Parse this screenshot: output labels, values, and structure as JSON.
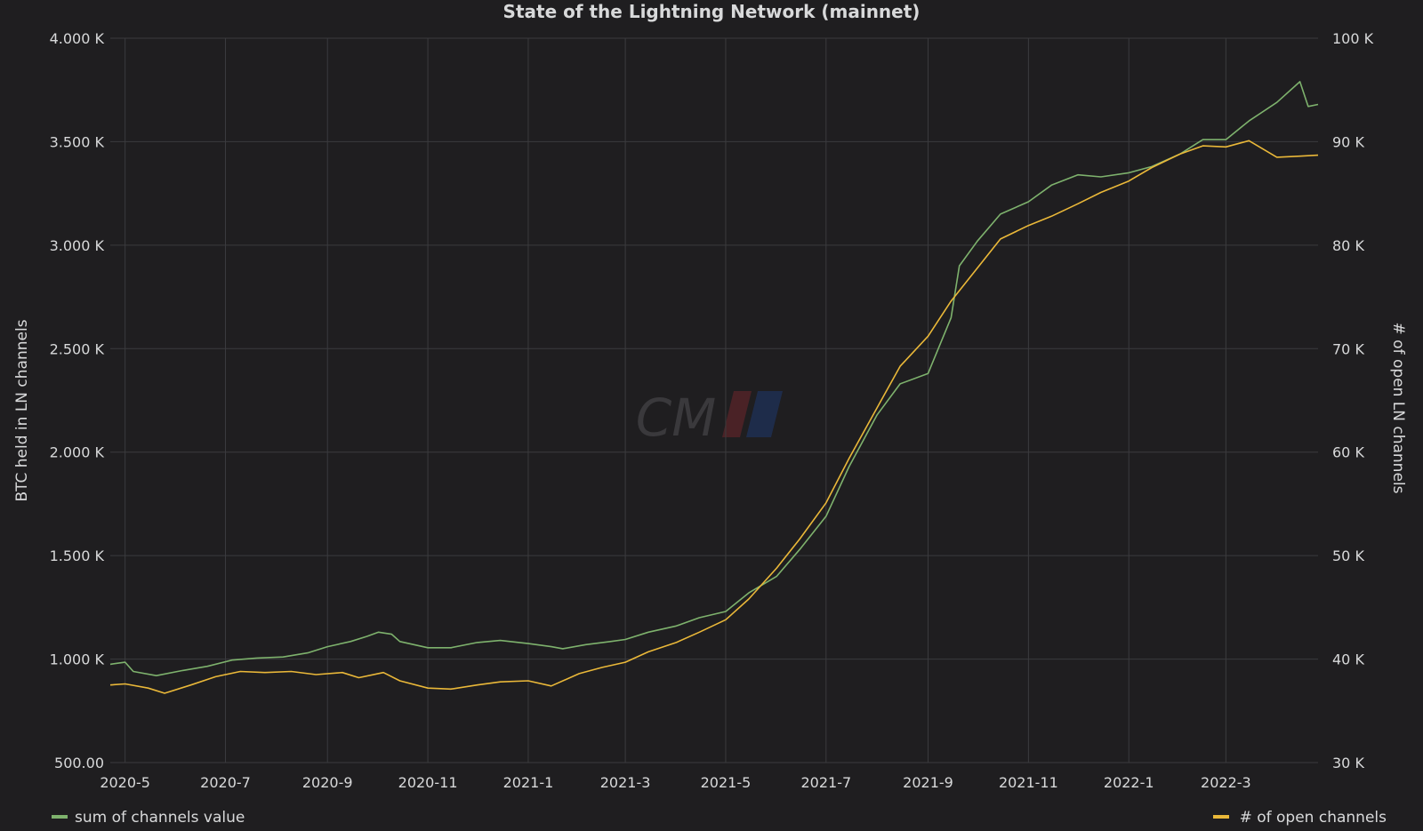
{
  "chart_data": {
    "type": "line",
    "title": "State of the Lightning Network (mainnet)",
    "watermark": "CM",
    "x_domain": [
      "2020-04-22",
      "2022-04-26"
    ],
    "x_ticks": [
      {
        "date": "2020-05-01",
        "label": "2020-5"
      },
      {
        "date": "2020-07-01",
        "label": "2020-7"
      },
      {
        "date": "2020-09-01",
        "label": "2020-9"
      },
      {
        "date": "2020-11-01",
        "label": "2020-11"
      },
      {
        "date": "2021-01-01",
        "label": "2021-1"
      },
      {
        "date": "2021-03-01",
        "label": "2021-3"
      },
      {
        "date": "2021-05-01",
        "label": "2021-5"
      },
      {
        "date": "2021-07-01",
        "label": "2021-7"
      },
      {
        "date": "2021-09-01",
        "label": "2021-9"
      },
      {
        "date": "2021-11-01",
        "label": "2021-11"
      },
      {
        "date": "2022-01-01",
        "label": "2022-1"
      },
      {
        "date": "2022-03-01",
        "label": "2022-3"
      }
    ],
    "y_left": {
      "label": "BTC held in LN channels",
      "range": [
        500,
        4000
      ],
      "ticks": [
        500,
        1000,
        1500,
        2000,
        2500,
        3000,
        3500,
        4000
      ],
      "tick_labels": [
        "500.00",
        "1.000 K",
        "1.500 K",
        "2.000 K",
        "2.500 K",
        "3.000 K",
        "3.500 K",
        "4.000 K"
      ]
    },
    "y_right": {
      "label": "# of open LN channels",
      "range": [
        30000,
        100000
      ],
      "ticks": [
        30000,
        40000,
        50000,
        60000,
        70000,
        80000,
        90000,
        100000
      ],
      "tick_labels": [
        "30 K",
        "40 K",
        "50 K",
        "60 K",
        "70 K",
        "80 K",
        "90 K",
        "100 K"
      ]
    },
    "grid": true,
    "legend_placement": "bottom",
    "series": [
      {
        "name": "sum of channels value",
        "axis": "left",
        "color": "#7eb26d",
        "points": [
          [
            "2020-04-22",
            975
          ],
          [
            "2020-05-01",
            985
          ],
          [
            "2020-05-06",
            940
          ],
          [
            "2020-05-20",
            920
          ],
          [
            "2020-06-05",
            945
          ],
          [
            "2020-06-20",
            965
          ],
          [
            "2020-07-05",
            995
          ],
          [
            "2020-07-20",
            1005
          ],
          [
            "2020-08-05",
            1010
          ],
          [
            "2020-08-20",
            1030
          ],
          [
            "2020-09-01",
            1060
          ],
          [
            "2020-09-15",
            1085
          ],
          [
            "2020-09-25",
            1110
          ],
          [
            "2020-10-02",
            1130
          ],
          [
            "2020-10-10",
            1120
          ],
          [
            "2020-10-15",
            1085
          ],
          [
            "2020-11-01",
            1055
          ],
          [
            "2020-11-15",
            1055
          ],
          [
            "2020-12-01",
            1080
          ],
          [
            "2020-12-15",
            1090
          ],
          [
            "2021-01-01",
            1075
          ],
          [
            "2021-01-15",
            1060
          ],
          [
            "2021-01-22",
            1050
          ],
          [
            "2021-02-05",
            1070
          ],
          [
            "2021-02-20",
            1085
          ],
          [
            "2021-03-01",
            1095
          ],
          [
            "2021-03-15",
            1130
          ],
          [
            "2021-04-01",
            1160
          ],
          [
            "2021-04-15",
            1200
          ],
          [
            "2021-05-01",
            1230
          ],
          [
            "2021-05-15",
            1320
          ],
          [
            "2021-06-01",
            1400
          ],
          [
            "2021-06-15",
            1530
          ],
          [
            "2021-07-01",
            1690
          ],
          [
            "2021-07-15",
            1930
          ],
          [
            "2021-08-01",
            2180
          ],
          [
            "2021-08-15",
            2330
          ],
          [
            "2021-09-01",
            2380
          ],
          [
            "2021-09-15",
            2650
          ],
          [
            "2021-09-20",
            2900
          ],
          [
            "2021-10-01",
            3020
          ],
          [
            "2021-10-15",
            3150
          ],
          [
            "2021-11-01",
            3210
          ],
          [
            "2021-11-15",
            3290
          ],
          [
            "2021-12-01",
            3340
          ],
          [
            "2021-12-15",
            3330
          ],
          [
            "2022-01-01",
            3350
          ],
          [
            "2022-01-15",
            3380
          ],
          [
            "2022-02-01",
            3440
          ],
          [
            "2022-02-15",
            3510
          ],
          [
            "2022-03-01",
            3510
          ],
          [
            "2022-03-15",
            3600
          ],
          [
            "2022-04-01",
            3690
          ],
          [
            "2022-04-15",
            3790
          ],
          [
            "2022-04-20",
            3670
          ],
          [
            "2022-04-26",
            3680
          ]
        ]
      },
      {
        "name": "# of open channels",
        "axis": "right",
        "color": "#eab839",
        "points": [
          [
            "2020-04-22",
            37500
          ],
          [
            "2020-05-01",
            37600
          ],
          [
            "2020-05-15",
            37200
          ],
          [
            "2020-05-25",
            36700
          ],
          [
            "2020-06-10",
            37500
          ],
          [
            "2020-06-25",
            38300
          ],
          [
            "2020-07-10",
            38800
          ],
          [
            "2020-07-25",
            38700
          ],
          [
            "2020-08-10",
            38800
          ],
          [
            "2020-08-25",
            38500
          ],
          [
            "2020-09-10",
            38700
          ],
          [
            "2020-09-20",
            38200
          ],
          [
            "2020-10-05",
            38700
          ],
          [
            "2020-10-15",
            37900
          ],
          [
            "2020-11-01",
            37200
          ],
          [
            "2020-11-15",
            37100
          ],
          [
            "2020-12-01",
            37500
          ],
          [
            "2020-12-15",
            37800
          ],
          [
            "2021-01-01",
            37900
          ],
          [
            "2021-01-15",
            37400
          ],
          [
            "2021-02-01",
            38600
          ],
          [
            "2021-02-15",
            39200
          ],
          [
            "2021-03-01",
            39700
          ],
          [
            "2021-03-15",
            40700
          ],
          [
            "2021-04-01",
            41600
          ],
          [
            "2021-04-15",
            42600
          ],
          [
            "2021-05-01",
            43800
          ],
          [
            "2021-05-15",
            45800
          ],
          [
            "2021-06-01",
            48800
          ],
          [
            "2021-06-15",
            51600
          ],
          [
            "2021-07-01",
            55100
          ],
          [
            "2021-07-15",
            59400
          ],
          [
            "2021-08-01",
            64300
          ],
          [
            "2021-08-15",
            68300
          ],
          [
            "2021-09-01",
            71200
          ],
          [
            "2021-09-15",
            74600
          ],
          [
            "2021-10-01",
            77800
          ],
          [
            "2021-10-15",
            80600
          ],
          [
            "2021-11-01",
            81900
          ],
          [
            "2021-11-15",
            82800
          ],
          [
            "2021-12-01",
            84000
          ],
          [
            "2021-12-15",
            85100
          ],
          [
            "2022-01-01",
            86200
          ],
          [
            "2022-01-15",
            87500
          ],
          [
            "2022-02-01",
            88800
          ],
          [
            "2022-02-15",
            89600
          ],
          [
            "2022-03-01",
            89500
          ],
          [
            "2022-03-15",
            90100
          ],
          [
            "2022-04-01",
            88500
          ],
          [
            "2022-04-15",
            88600
          ],
          [
            "2022-04-26",
            88700
          ]
        ]
      }
    ]
  }
}
